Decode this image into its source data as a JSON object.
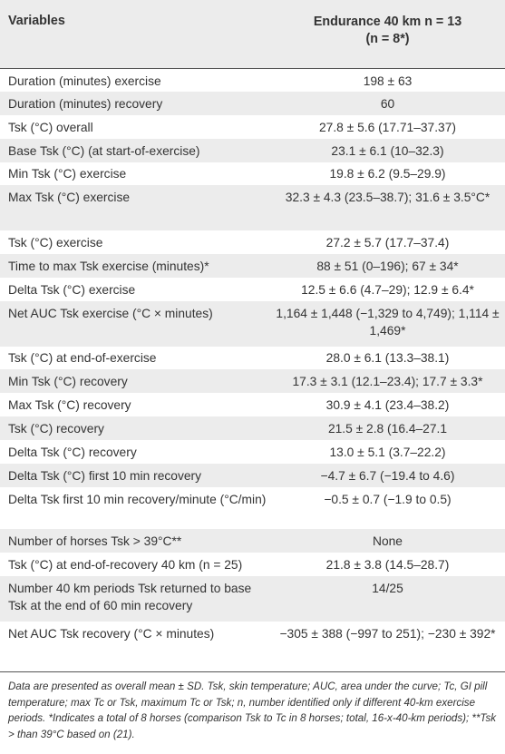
{
  "header": {
    "variables": "Variables",
    "column_line1": "Endurance 40 km n = 13",
    "column_line2": "(n = 8*)"
  },
  "rows": [
    {
      "var": "Duration (minutes) exercise",
      "val": "198 ± 63"
    },
    {
      "var": "Duration (minutes) recovery",
      "val": "60"
    },
    {
      "var": "Tsk (°C) overall",
      "val": "27.8 ± 5.6 (17.71–37.37)"
    },
    {
      "var": "Base Tsk (°C) (at start-of-exercise)",
      "val": "23.1 ± 6.1 (10–32.3)"
    },
    {
      "var": "Min Tsk (°C) exercise",
      "val": "19.8 ± 6.2 (9.5–29.9)"
    },
    {
      "var": "Max Tsk (°C) exercise",
      "val": "32.3 ± 4.3 (23.5–38.7); 31.6 ± 3.5°C*"
    },
    {
      "var": "Tsk (°C) exercise",
      "val": "27.2 ± 5.7 (17.7–37.4)"
    },
    {
      "var": "Time to max Tsk exercise (minutes)*",
      "val": "88 ± 51 (0–196); 67 ± 34*"
    },
    {
      "var": "Delta Tsk (°C) exercise",
      "val": "12.5 ± 6.6 (4.7–29); 12.9 ± 6.4*"
    },
    {
      "var": "Net AUC Tsk exercise (°C × minutes)",
      "val": "1,164 ± 1,448 (−1,329 to 4,749); 1,114 ± 1,469*"
    },
    {
      "var": "Tsk (°C) at end-of-exercise",
      "val": "28.0 ± 6.1 (13.3–38.1)"
    },
    {
      "var": "Min Tsk (°C) recovery",
      "val": "17.3 ± 3.1 (12.1–23.4); 17.7 ± 3.3*"
    },
    {
      "var": "Max Tsk (°C) recovery",
      "val": "30.9 ± 4.1 (23.4–38.2)"
    },
    {
      "var": "Tsk (°C) recovery",
      "val": "21.5 ± 2.8 (16.4–27.1"
    },
    {
      "var": "Delta Tsk (°C) recovery",
      "val": "13.0 ± 5.1 (3.7–22.2)"
    },
    {
      "var": "Delta Tsk (°C) first 10 min recovery",
      "val": "−4.7 ± 6.7 (−19.4 to 4.6)"
    },
    {
      "var": "Delta Tsk first 10 min recovery/minute (°C/min)",
      "val": "−0.5 ± 0.7 (−1.9 to 0.5)"
    },
    {
      "var": "Number of horses Tsk > 39°C**",
      "val": "None"
    },
    {
      "var": "Tsk (°C) at end-of-recovery 40 km (n = 25)",
      "val": "21.8 ± 3.8 (14.5–28.7)"
    },
    {
      "var": "Number 40 km periods Tsk returned to base Tsk at the end of 60 min recovery",
      "val": "14/25"
    },
    {
      "var": "Net AUC Tsk recovery (°C × minutes)",
      "val": "−305 ± 388 (−997 to 251); −230 ± 392*"
    }
  ],
  "footnote": "Data are presented as overall mean ± SD. Tsk, skin temperature; AUC, area under the curve; Tc, GI pill temperature; max Tc or Tsk, maximum Tc or Tsk; n, number identified only if different 40-km exercise periods. *Indicates a total of 8 horses (comparison Tsk to Tc in 8 horses; total, 16-x-40-km periods); **Tsk > than 39°C based on (21)."
}
